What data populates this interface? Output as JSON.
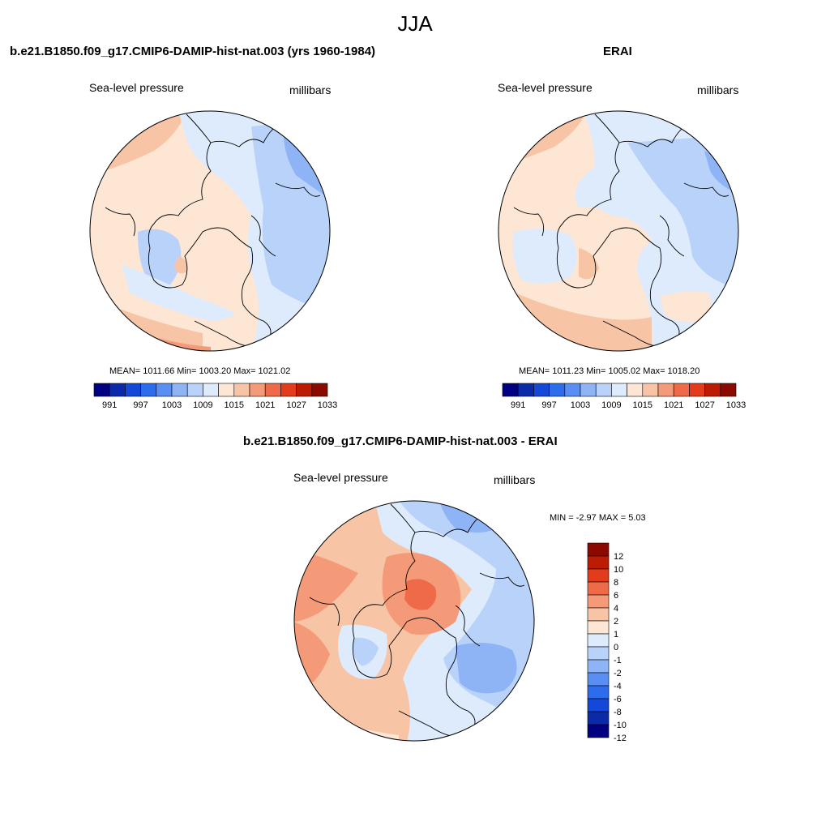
{
  "figure": {
    "season": "JJA",
    "units": "millibars",
    "variable": "Sea-level pressure"
  },
  "panels": {
    "model": {
      "title": "b.e21.B1850.f09_g17.CMIP6-DAMIP-hist-nat.003 (yrs 1960-1984)",
      "variable": "Sea-level pressure",
      "units": "millibars",
      "stats": "MEAN= 1011.66  Min= 1003.20  Max= 1021.02"
    },
    "obs": {
      "title": "ERAI",
      "variable": "Sea-level pressure",
      "units": "millibars",
      "stats": "MEAN= 1011.23  Min= 1005.02  Max= 1018.20"
    },
    "diff": {
      "title": "b.e21.B1850.f09_g17.CMIP6-DAMIP-hist-nat.003 - ERAI",
      "variable": "Sea-level pressure",
      "units": "millibars",
      "stats": "MIN =  -2.97 MAX =   5.03"
    }
  },
  "colorbars": {
    "absolute": {
      "colors": [
        "#000080",
        "#0a2aa8",
        "#1448d8",
        "#2e6cee",
        "#5a8ef2",
        "#8eb4f6",
        "#b8d2fa",
        "#deebfc",
        "#fde6d4",
        "#f8c4a6",
        "#f49a78",
        "#ee6a48",
        "#e23c1c",
        "#bc1c04",
        "#8a0a00"
      ],
      "labels": [
        "991",
        "997",
        "1003",
        "1009",
        "1015",
        "1021",
        "1027",
        "1033"
      ]
    },
    "difference": {
      "colors": [
        "#000080",
        "#0a2aa8",
        "#1448d8",
        "#2e6cee",
        "#5a8ef2",
        "#8eb4f6",
        "#b8d2fa",
        "#deebfc",
        "#fde6d4",
        "#f8c4a6",
        "#f49a78",
        "#ee6a48",
        "#e23c1c",
        "#bc1c04",
        "#8a0a00"
      ],
      "labels": [
        "-12",
        "-10",
        "-8",
        "-6",
        "-4",
        "-2",
        "-1",
        "0",
        "1",
        "2",
        "4",
        "6",
        "8",
        "10",
        "12"
      ]
    }
  },
  "map_colors": {
    "light_blue": "#deebfc",
    "mid_blue": "#b8d2fa",
    "blue": "#8eb4f6",
    "deep_blue": "#5a8ef2",
    "cream": "#fde6d4",
    "peach": "#f8c4a6",
    "salmon": "#f49a78",
    "orange": "#ee6a48"
  }
}
